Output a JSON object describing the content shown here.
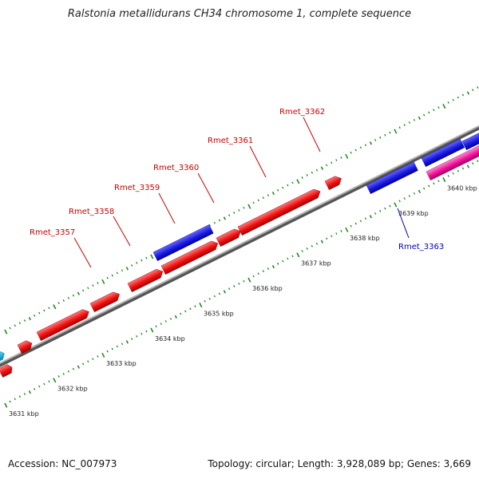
{
  "title": "Ralstonia metallidurans CH34 chromosome 1, complete sequence",
  "colors": {
    "forward_gene": "#ee1111",
    "reverse_gene": "#1a1ae0",
    "pink_gene": "#ee1199",
    "cyan_gene": "#00aadd",
    "tick": "#228822",
    "backbone": "#888888",
    "forward_label": "#cc0000",
    "reverse_label": "#0000bb"
  },
  "scale": {
    "ticks": [
      {
        "kbp": 3631,
        "label": "3631 kbp"
      },
      {
        "kbp": 3632,
        "label": "3632 kbp"
      },
      {
        "kbp": 3633,
        "label": "3633 kbp"
      },
      {
        "kbp": 3634,
        "label": "3634 kbp"
      },
      {
        "kbp": 3635,
        "label": "3635 kbp"
      },
      {
        "kbp": 3636,
        "label": "3636 kbp"
      },
      {
        "kbp": 3637,
        "label": "3637 kbp"
      },
      {
        "kbp": 3638,
        "label": "3638 kbp"
      },
      {
        "kbp": 3639,
        "label": "3639 kbp"
      },
      {
        "kbp": 3640,
        "label": "3640 kbp"
      }
    ]
  },
  "genes": [
    {
      "label": "Rmet_3357",
      "strand": "forward",
      "color": "forward_gene"
    },
    {
      "label": "Rmet_3358",
      "strand": "forward",
      "color": "forward_gene"
    },
    {
      "label": "Rmet_3359",
      "strand": "reverse",
      "color": "reverse_gene"
    },
    {
      "label": "Rmet_3360",
      "strand": "forward",
      "color": "forward_gene"
    },
    {
      "label": "Rmet_3361",
      "strand": "forward",
      "color": "forward_gene"
    },
    {
      "label": "Rmet_3362",
      "strand": "forward",
      "color": "forward_gene"
    },
    {
      "label": "Rmet_3363",
      "strand": "reverse",
      "color": "reverse_gene"
    }
  ],
  "footer": {
    "accession": "Accession: NC_007973",
    "summary": "Topology: circular; Length: 3,928,089 bp; Genes: 3,669"
  }
}
